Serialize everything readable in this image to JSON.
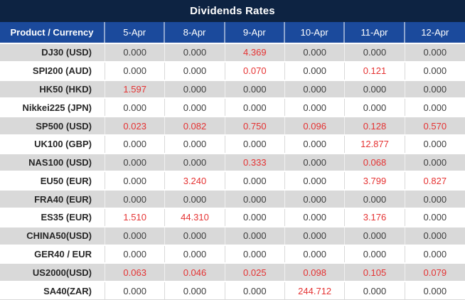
{
  "chart_data": {
    "type": "table",
    "title": "Dividends Rates",
    "columns": [
      "Product / Currency",
      "5-Apr",
      "8-Apr",
      "9-Apr",
      "10-Apr",
      "11-Apr",
      "12-Apr"
    ],
    "rows": [
      {
        "product": "DJ30 (USD)",
        "values": [
          "0.000",
          "0.000",
          "4.369",
          "0.000",
          "0.000",
          "0.000"
        ]
      },
      {
        "product": "SPI200 (AUD)",
        "values": [
          "0.000",
          "0.000",
          "0.070",
          "0.000",
          "0.121",
          "0.000"
        ]
      },
      {
        "product": "HK50 (HKD)",
        "values": [
          "1.597",
          "0.000",
          "0.000",
          "0.000",
          "0.000",
          "0.000"
        ]
      },
      {
        "product": "Nikkei225 (JPN)",
        "values": [
          "0.000",
          "0.000",
          "0.000",
          "0.000",
          "0.000",
          "0.000"
        ]
      },
      {
        "product": "SP500 (USD)",
        "values": [
          "0.023",
          "0.082",
          "0.750",
          "0.096",
          "0.128",
          "0.570"
        ]
      },
      {
        "product": "UK100 (GBP)",
        "values": [
          "0.000",
          "0.000",
          "0.000",
          "0.000",
          "12.877",
          "0.000"
        ]
      },
      {
        "product": "NAS100 (USD)",
        "values": [
          "0.000",
          "0.000",
          "0.333",
          "0.000",
          "0.068",
          "0.000"
        ]
      },
      {
        "product": "EU50 (EUR)",
        "values": [
          "0.000",
          "3.240",
          "0.000",
          "0.000",
          "3.799",
          "0.827"
        ]
      },
      {
        "product": "FRA40 (EUR)",
        "values": [
          "0.000",
          "0.000",
          "0.000",
          "0.000",
          "0.000",
          "0.000"
        ]
      },
      {
        "product": "ES35 (EUR)",
        "values": [
          "1.510",
          "44.310",
          "0.000",
          "0.000",
          "3.176",
          "0.000"
        ]
      },
      {
        "product": "CHINA50(USD)",
        "values": [
          "0.000",
          "0.000",
          "0.000",
          "0.000",
          "0.000",
          "0.000"
        ]
      },
      {
        "product": "GER40 / EUR",
        "values": [
          "0.000",
          "0.000",
          "0.000",
          "0.000",
          "0.000",
          "0.000"
        ]
      },
      {
        "product": "US2000(USD)",
        "values": [
          "0.063",
          "0.046",
          "0.025",
          "0.098",
          "0.105",
          "0.079"
        ]
      },
      {
        "product": "SA40(ZAR)",
        "values": [
          "0.000",
          "0.000",
          "0.000",
          "244.712",
          "0.000",
          "0.000"
        ]
      }
    ],
    "style_note": "non-zero values rendered in red, zero values in dark gray; rows alternate gray/white starting gray"
  },
  "colors": {
    "title_bg": "#0d2342",
    "header_bg": "#1b4a9c",
    "stripe_gray": "#d9d9d9",
    "stripe_white": "#ffffff",
    "zero_value_text": "#3d3d3d",
    "nonzero_value_text": "#e53232"
  }
}
